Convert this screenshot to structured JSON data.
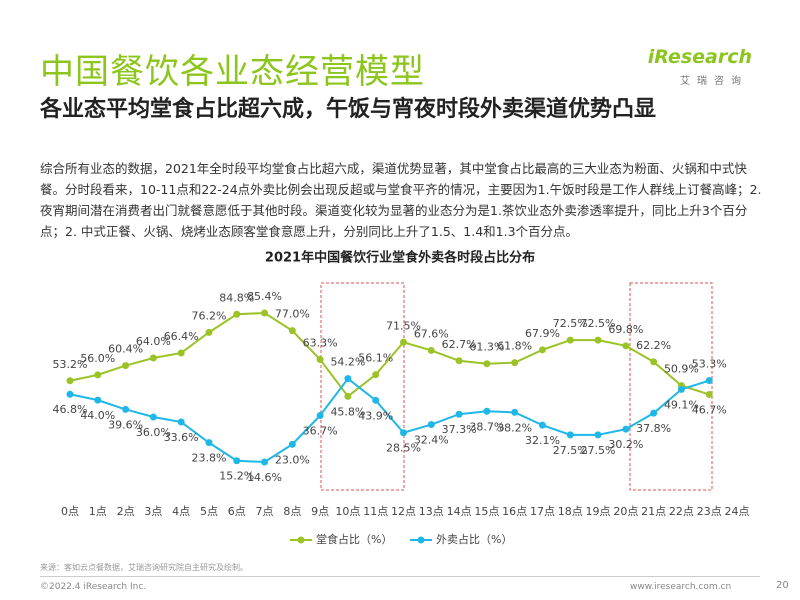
{
  "header": {
    "title": "中国餐饮各业态经营模型",
    "subtitle": "各业态平均堂食占比超六成，午饭与宵夜时段外卖渠道优势凸显",
    "body": "综合所有业态的数据，2021年全时段平均堂食占比超六成，渠道优势显著，其中堂食占比最高的三大业态为粉面、火锅和中式快餐。分时段看来，10-11点和22-24点外卖比例会出现反超或与堂食平齐的情况，主要因为1.午饭时段是工作人群线上订餐高峰；2.夜宵期间潜在消费者出门就餐意愿低于其他时段。渠道变化较为显著的业态分为是1.茶饮业态外卖渗透率提升，同比上升3个百分点；2. 中式正餐、火锅、烧烤业态顾客堂食意愿上升，分别同比上升了1.5、1.4和1.3个百分点。"
  },
  "logo": {
    "name": "iResearch",
    "sub": "艾瑞咨询"
  },
  "chart_data": {
    "type": "line",
    "title": "2021年中国餐饮行业堂食外卖各时段占比分布",
    "categories": [
      "0点",
      "1点",
      "2点",
      "3点",
      "4点",
      "5点",
      "6点",
      "7点",
      "8点",
      "9点",
      "10点",
      "11点",
      "12点",
      "13点",
      "14点",
      "15点",
      "16点",
      "17点",
      "18点",
      "19点",
      "20点",
      "21点",
      "22点",
      "23点",
      "24点"
    ],
    "series": [
      {
        "name": "堂食占比（%）",
        "color": "#9bc328",
        "values": [
          53.2,
          56.0,
          60.4,
          64.0,
          66.4,
          76.2,
          84.8,
          85.4,
          77.0,
          63.3,
          45.8,
          56.1,
          71.5,
          67.6,
          62.7,
          61.3,
          61.8,
          67.9,
          72.5,
          72.5,
          69.8,
          62.2,
          50.9,
          46.7,
          null
        ],
        "value_labels": [
          "53.2%",
          "56.0%",
          "60.4%",
          "64.0%",
          "66.4%",
          "76.2%",
          "84.8%",
          "85.4%",
          "77.0%",
          "63.3%",
          "45.8%",
          "56.1%",
          "71.5%",
          "67.6%",
          "62.7%",
          "61.3%",
          "61.8%",
          "67.9%",
          "72.5%",
          "72.5%",
          "69.8%",
          "62.2%",
          "50.9%",
          "46.7%",
          null
        ]
      },
      {
        "name": "外卖占比（%）",
        "color": "#1fb7e8",
        "values": [
          46.8,
          44.0,
          39.6,
          36.0,
          33.6,
          23.8,
          15.2,
          14.6,
          23.0,
          36.7,
          54.2,
          43.9,
          28.5,
          32.4,
          37.3,
          38.7,
          38.2,
          32.1,
          27.5,
          27.5,
          30.2,
          37.8,
          49.1,
          53.3,
          null
        ],
        "value_labels": [
          "46.8%",
          "44.0%",
          "39.6%",
          "36.0%",
          "33.6%",
          "23.8%",
          "15.2%",
          "14.6%",
          "23.0%",
          "36.7%",
          "54.2%",
          "43.9%",
          "28.5%",
          "32.4%",
          "37.3%",
          "38.7%",
          "38.2%",
          "32.1%",
          "27.5%",
          "27.5%",
          "30.2%",
          "37.8%",
          "49.1%",
          "53.3%",
          null
        ]
      }
    ],
    "legend": "bottom"
  },
  "source": "来源：客如云点餐数据，艾瑞咨询研究院自主研究及绘制。",
  "footer": {
    "copyright": "©2022.4 iResearch Inc.",
    "url": "www.iresearch.com.cn",
    "page": "20"
  }
}
